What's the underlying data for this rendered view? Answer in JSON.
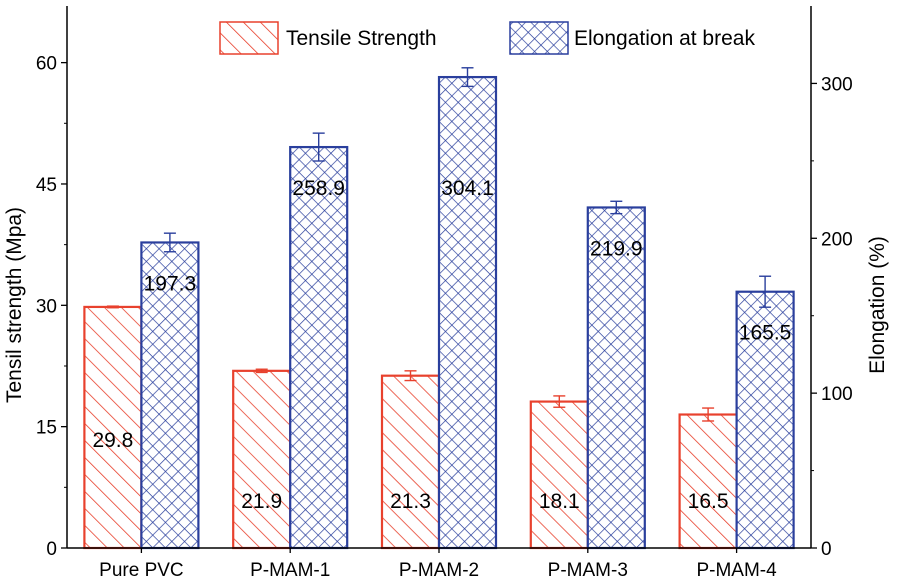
{
  "chart_data": {
    "type": "bar",
    "categories": [
      "Pure PVC",
      "P-MAM-1",
      "P-MAM-2",
      "P-MAM-3",
      "P-MAM-4"
    ],
    "series": [
      {
        "name": "Tensile Strength",
        "axis": "left",
        "color": "#e8412d",
        "pattern": "diagonal-hatch",
        "values": [
          29.8,
          21.9,
          21.3,
          18.1,
          16.5
        ],
        "labels": [
          "29.8",
          "21.9",
          "21.3",
          "18.1",
          "16.5"
        ],
        "errors": [
          0.1,
          0.2,
          0.6,
          0.7,
          0.8
        ]
      },
      {
        "name": "Elongation at break",
        "axis": "right",
        "color": "#2a3f9d",
        "pattern": "cross-hatch",
        "values": [
          197.3,
          258.9,
          304.1,
          219.9,
          165.5
        ],
        "labels": [
          "197.3",
          "258.9",
          "304.1",
          "219.9",
          "165.5"
        ],
        "errors": [
          6,
          9,
          6,
          4,
          10
        ]
      }
    ],
    "ylabel_left": "Tensil strength (Mpa)",
    "ylabel_right": "Elongation (%)",
    "ylim_left": [
      0,
      67
    ],
    "yticks_left": [
      0,
      15,
      30,
      45,
      60
    ],
    "ylim_right": [
      0,
      350
    ],
    "yticks_right": [
      0,
      100,
      200,
      300
    ],
    "legend_position": "top",
    "grid": false
  }
}
